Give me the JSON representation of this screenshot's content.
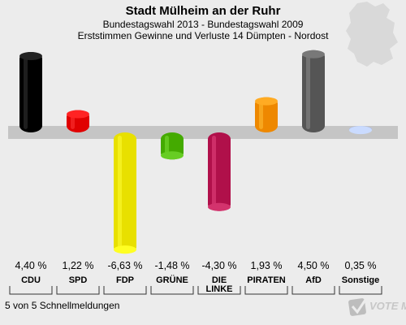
{
  "chart_data": {
    "type": "bar",
    "title": "Stadt Mülheim an der Ruhr",
    "subtitle1": "Bundestagswahl 2013 - Bundestagswahl 2009",
    "subtitle2": "Erststimmen Gewinne und Verluste 14 Dümpten - Nordost",
    "categories": [
      "CDU",
      "SPD",
      "FDP",
      "GRÜNE",
      "DIE LINKE",
      "PIRATEN",
      "AfD",
      "Sonstige"
    ],
    "values": [
      4.4,
      1.22,
      -6.63,
      -1.48,
      -4.3,
      1.93,
      4.5,
      0.35
    ],
    "value_labels": [
      "4,40 %",
      "1,22 %",
      "-6,63 %",
      "-1,48 %",
      "-4,30 %",
      "1,93 %",
      "4,50 %",
      "0,35 %"
    ],
    "colors": [
      "#000000",
      "#e00000",
      "#e8e000",
      "#44aa00",
      "#b0104a",
      "#ee8800",
      "#555555",
      "#a7b8e8"
    ],
    "ylim": [
      -7,
      5.5
    ]
  },
  "footer": "5 von 5 Schnellmeldungen",
  "logo": {
    "text": "VOTE MANAGER",
    "icon": "ballot-checkmark-icon"
  },
  "map": {
    "icon": "germany-map-icon",
    "color": "#d9d9d9"
  }
}
